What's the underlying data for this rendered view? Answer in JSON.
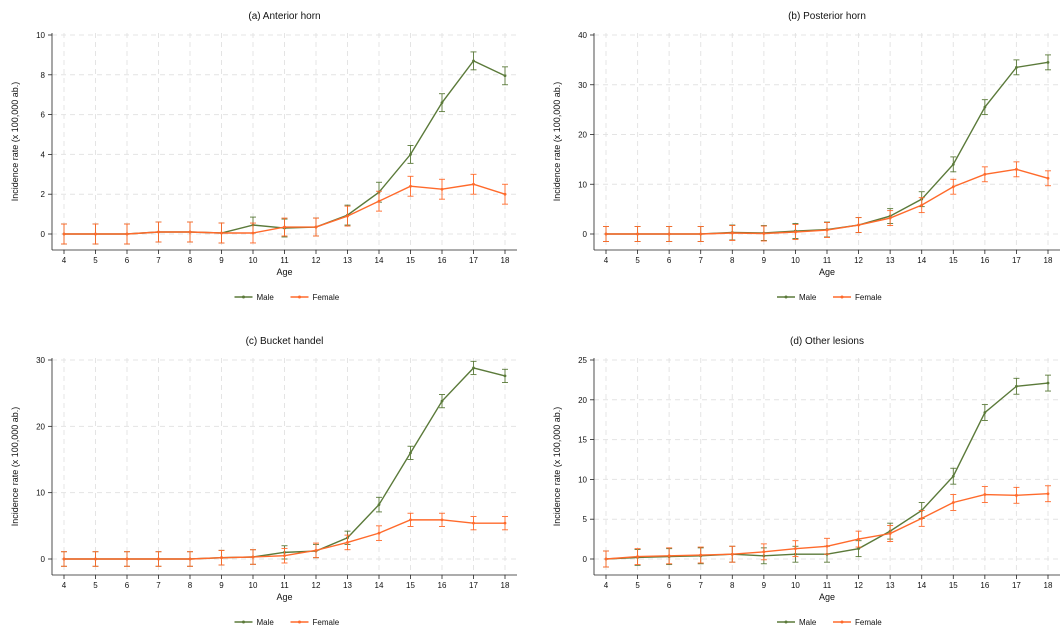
{
  "chart_data": [
    {
      "type": "line",
      "title": "(a) Anterior horn",
      "xlabel": "Age",
      "ylabel": "Incidence rate (x 100,000 ab.)",
      "x": [
        4,
        5,
        6,
        7,
        8,
        9,
        10,
        11,
        12,
        13,
        14,
        15,
        16,
        17,
        18
      ],
      "ylim": [
        0,
        10
      ],
      "yticks": [
        0,
        2,
        4,
        6,
        8,
        10
      ],
      "legend_position": "bottom",
      "grid": true,
      "series": [
        {
          "name": "Male",
          "color": "#5b7a3a",
          "values": [
            0,
            0,
            0,
            0.1,
            0.1,
            0.05,
            0.45,
            0.3,
            0.35,
            0.95,
            2.1,
            4.0,
            6.6,
            8.7,
            7.95
          ],
          "errors": [
            0.5,
            0.5,
            0.5,
            0.5,
            0.5,
            0.5,
            0.4,
            0.45,
            0.45,
            0.5,
            0.5,
            0.45,
            0.45,
            0.45,
            0.45
          ]
        },
        {
          "name": "Female",
          "color": "#ff6a2b",
          "values": [
            0,
            0,
            0,
            0.1,
            0.1,
            0.05,
            0.05,
            0.35,
            0.35,
            0.9,
            1.65,
            2.4,
            2.25,
            2.5,
            2.0
          ],
          "errors": [
            0.5,
            0.5,
            0.5,
            0.5,
            0.5,
            0.5,
            0.5,
            0.45,
            0.45,
            0.5,
            0.5,
            0.5,
            0.5,
            0.5,
            0.5
          ]
        }
      ]
    },
    {
      "type": "line",
      "title": "(b) Posterior horn",
      "xlabel": "Age",
      "ylabel": "Incidence rate (x 100,000 ab.)",
      "x": [
        4,
        5,
        6,
        7,
        8,
        9,
        10,
        11,
        12,
        13,
        14,
        15,
        16,
        17,
        18
      ],
      "ylim": [
        0,
        40
      ],
      "yticks": [
        0,
        10,
        20,
        30,
        40
      ],
      "legend_position": "bottom",
      "grid": true,
      "series": [
        {
          "name": "Male",
          "color": "#5b7a3a",
          "values": [
            0,
            0,
            0,
            0,
            0.3,
            0.2,
            0.6,
            0.9,
            1.8,
            3.6,
            7.0,
            14.0,
            25.5,
            33.5,
            34.5
          ],
          "errors": [
            1.5,
            1.5,
            1.5,
            1.5,
            1.5,
            1.5,
            1.5,
            1.5,
            1.5,
            1.5,
            1.5,
            1.5,
            1.5,
            1.5,
            1.5
          ]
        },
        {
          "name": "Female",
          "color": "#ff6a2b",
          "values": [
            0,
            0,
            0,
            0,
            0.2,
            0.1,
            0.4,
            0.8,
            1.8,
            3.2,
            5.8,
            9.5,
            12.0,
            13.0,
            11.2
          ],
          "errors": [
            1.5,
            1.5,
            1.5,
            1.5,
            1.5,
            1.5,
            1.5,
            1.5,
            1.5,
            1.5,
            1.5,
            1.5,
            1.5,
            1.5,
            1.5
          ]
        }
      ]
    },
    {
      "type": "line",
      "title": "(c) Bucket handel",
      "xlabel": "Age",
      "ylabel": "Incidence rate (x 100,000 ab.)",
      "x": [
        4,
        5,
        6,
        7,
        8,
        9,
        10,
        11,
        12,
        13,
        14,
        15,
        16,
        17,
        18
      ],
      "ylim": [
        0,
        30
      ],
      "yticks": [
        0,
        10,
        20,
        30
      ],
      "legend_position": "bottom",
      "grid": true,
      "series": [
        {
          "name": "Male",
          "color": "#5b7a3a",
          "values": [
            0,
            0,
            0,
            0,
            0,
            0.2,
            0.3,
            1.0,
            1.2,
            3.2,
            8.2,
            16.0,
            23.8,
            28.8,
            27.6
          ],
          "errors": [
            1.1,
            1.1,
            1.1,
            1.1,
            1.1,
            1.1,
            1.1,
            1.0,
            1.0,
            1.0,
            1.1,
            1.0,
            1.0,
            1.0,
            1.0
          ]
        },
        {
          "name": "Female",
          "color": "#ff6a2b",
          "values": [
            0,
            0,
            0,
            0,
            0,
            0.2,
            0.3,
            0.5,
            1.3,
            2.5,
            3.9,
            5.9,
            5.9,
            5.4,
            5.4
          ],
          "errors": [
            1.1,
            1.1,
            1.1,
            1.1,
            1.1,
            1.1,
            1.1,
            1.1,
            1.1,
            1.1,
            1.1,
            1.0,
            1.0,
            1.0,
            1.0
          ]
        }
      ]
    },
    {
      "type": "line",
      "title": "(d) Other lesions",
      "xlabel": "Age",
      "ylabel": "Incidence rate (x 100,000 ab.)",
      "x": [
        4,
        5,
        6,
        7,
        8,
        9,
        10,
        11,
        12,
        13,
        14,
        15,
        16,
        17,
        18
      ],
      "ylim": [
        0,
        25
      ],
      "yticks": [
        0,
        5,
        10,
        15,
        20,
        25
      ],
      "legend_position": "bottom",
      "grid": true,
      "series": [
        {
          "name": "Male",
          "color": "#5b7a3a",
          "values": [
            0,
            0.2,
            0.3,
            0.4,
            0.6,
            0.4,
            0.6,
            0.6,
            1.3,
            3.5,
            6.1,
            10.4,
            18.4,
            21.7,
            22.1
          ],
          "errors": [
            1.0,
            1.0,
            1.0,
            1.0,
            1.0,
            1.0,
            1.0,
            1.0,
            1.0,
            1.0,
            1.0,
            1.0,
            1.0,
            1.0,
            1.0
          ]
        },
        {
          "name": "Female",
          "color": "#ff6a2b",
          "values": [
            0,
            0.3,
            0.4,
            0.5,
            0.6,
            0.9,
            1.3,
            1.6,
            2.5,
            3.2,
            5.1,
            7.1,
            8.1,
            8.0,
            8.2
          ],
          "errors": [
            1.0,
            1.0,
            1.0,
            1.0,
            1.0,
            1.0,
            1.0,
            1.0,
            1.0,
            1.0,
            1.0,
            1.0,
            1.0,
            1.0,
            1.0
          ]
        }
      ]
    }
  ]
}
